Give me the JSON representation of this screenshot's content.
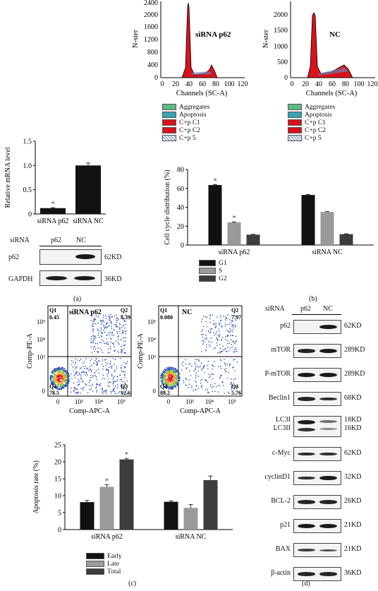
{
  "panel_labels": {
    "a": "(a)",
    "b": "(b)",
    "c": "(c)",
    "d": "(d)"
  },
  "colors": {
    "red": "#d8121b",
    "teal": "#3aa2b5",
    "green": "#5fb884",
    "hatch": "#6f7fb8",
    "black": "#111111",
    "gray": "#9a9a9a",
    "dark": "#3c3c3e"
  },
  "histograms": {
    "ylabel": "N-ster",
    "xlabel": "Channels (SC-A)",
    "xticks": [
      "0",
      "20",
      "40",
      "60",
      "80",
      "100",
      "120"
    ],
    "left": {
      "title": "siRNA p62",
      "yticks": [
        "0",
        "400",
        "800",
        "1200",
        "1600",
        "2000",
        "2400"
      ]
    },
    "right": {
      "title": "NC",
      "yticks": [
        "0",
        "500",
        "1000",
        "1500",
        "2000"
      ]
    },
    "legend": [
      "Aggregates",
      "Apoptosis",
      "C+p C1",
      "C+p C2",
      "C+p 5"
    ]
  },
  "chart_data": [
    {
      "type": "bar",
      "title": "",
      "ylabel": "Relative mRNA level",
      "categories": [
        "siRNA p62",
        "siRNA NC"
      ],
      "values": [
        0.12,
        1.0
      ],
      "errors": [
        0.01,
        0.05
      ],
      "ylim": [
        0,
        1.5
      ],
      "yticks": [
        "0",
        "0.5",
        "1.0",
        "1.5"
      ],
      "annotations": [
        "*",
        ""
      ]
    },
    {
      "type": "bar",
      "ylabel": "Cell cycle distribution (%)",
      "categories": [
        "siRNA p62",
        "siRNA NC"
      ],
      "series": [
        {
          "name": "G1",
          "values": [
            63.5,
            53.0
          ],
          "errors": [
            0.6,
            0.4
          ]
        },
        {
          "name": "S",
          "values": [
            24.0,
            35.0
          ],
          "errors": [
            0.5,
            0.4
          ]
        },
        {
          "name": "G2",
          "values": [
            11.0,
            11.5
          ],
          "errors": [
            0.4,
            0.4
          ]
        }
      ],
      "ylim": [
        0,
        80
      ],
      "yticks": [
        "0",
        "20",
        "40",
        "60",
        "80"
      ],
      "star_marks": [
        "*",
        "*"
      ]
    },
    {
      "type": "bar",
      "ylabel": "Apoptosis rate (%)",
      "categories": [
        "siRNA p62",
        "siRNA NC"
      ],
      "series": [
        {
          "name": "Early",
          "values": [
            8.1,
            8.2
          ],
          "errors": [
            0.5,
            0.3
          ]
        },
        {
          "name": "Late",
          "values": [
            12.6,
            6.4
          ],
          "errors": [
            0.6,
            1.0
          ]
        },
        {
          "name": "Total",
          "values": [
            20.7,
            14.6
          ],
          "errors": [
            0.3,
            1.2
          ]
        }
      ],
      "ylim": [
        0,
        25
      ],
      "yticks": [
        "0",
        "5",
        "10",
        "15",
        "20",
        "25"
      ],
      "star_marks": [
        "*",
        "*"
      ]
    }
  ],
  "blot_a": {
    "header": {
      "sirna": "siRNA",
      "lanes": [
        "p62",
        "NC"
      ]
    },
    "rows": [
      {
        "label": "p62",
        "size": "62KD"
      },
      {
        "label": "GAPDH",
        "size": "36KD"
      }
    ]
  },
  "flow": {
    "xlabel": "Comp-APC-A",
    "ylabel": "Comp-PE-A",
    "xticks": [
      "0",
      "10³",
      "10⁴",
      "10⁵"
    ],
    "yticks": [
      "0",
      "10³",
      "10⁴",
      "10⁵"
    ],
    "left": {
      "title": "siRNA p62",
      "q1": "Q1",
      "q1v": "0.45",
      "q2": "Q2",
      "q2v": "8.39",
      "q3": "Q3",
      "q3v": "12.6",
      "q4": "Q4",
      "q4v": "78.5"
    },
    "right": {
      "title": "NC",
      "q1": "Q1",
      "q1v": "0.080",
      "q2": "Q2",
      "q2v": "7.97",
      "q3": "Q3",
      "q3v": "5.76",
      "q4": "Q4",
      "q4v": "88.2"
    }
  },
  "blot_d": {
    "header": {
      "sirna": "siRNA",
      "lanes": [
        "p62",
        "NC"
      ]
    },
    "rows": [
      {
        "label": "p62",
        "size": "62KD"
      },
      {
        "label": "mTOR",
        "size": "289KD"
      },
      {
        "label": "P-mTOR",
        "size": "289KD"
      },
      {
        "label": "Beclin1",
        "size": "68KD"
      },
      {
        "label": "LC3I",
        "label2": "LC3II",
        "size": "18KD",
        "size2": "16KD"
      },
      {
        "label": "c-Myc",
        "size": "62KD"
      },
      {
        "label": "cyclinD1",
        "size": "32KD"
      },
      {
        "label": "BCL-2",
        "size": "26KD"
      },
      {
        "label": "p21",
        "size": "21KD"
      },
      {
        "label": "BAX",
        "size": "21KD"
      },
      {
        "label": "β-actin",
        "size": "36KD"
      }
    ]
  }
}
